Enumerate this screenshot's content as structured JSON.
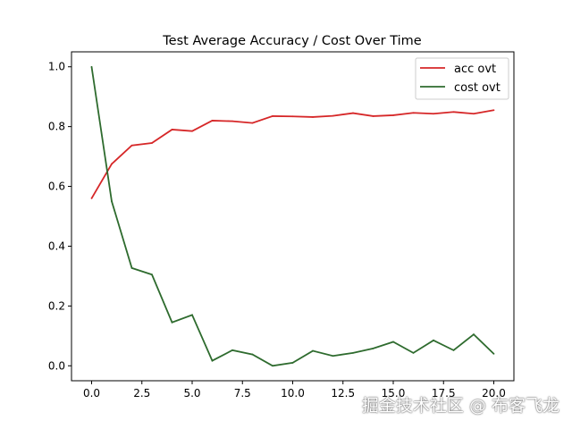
{
  "chart_data": {
    "type": "line",
    "title": "Test Average Accuracy / Cost Over Time",
    "xlabel": "",
    "ylabel": "",
    "xlim": [
      -1,
      21
    ],
    "ylim": [
      -0.05,
      1.05
    ],
    "xticks": [
      "0.0",
      "2.5",
      "5.0",
      "7.5",
      "10.0",
      "12.5",
      "15.0",
      "17.5",
      "20.0"
    ],
    "xtick_values": [
      0,
      2.5,
      5,
      7.5,
      10,
      12.5,
      15,
      17.5,
      20
    ],
    "yticks": [
      "0.0",
      "0.2",
      "0.4",
      "0.6",
      "0.8",
      "1.0"
    ],
    "ytick_values": [
      0,
      0.2,
      0.4,
      0.6,
      0.8,
      1.0
    ],
    "grid": false,
    "legend_position": "top-right",
    "x": [
      0,
      1,
      2,
      3,
      4,
      5,
      6,
      7,
      8,
      9,
      10,
      11,
      12,
      13,
      14,
      15,
      16,
      17,
      18,
      19,
      20
    ],
    "series": [
      {
        "name": "acc ovt",
        "color": "#d62728",
        "values": [
          0.56,
          0.675,
          0.737,
          0.745,
          0.79,
          0.785,
          0.82,
          0.818,
          0.812,
          0.835,
          0.834,
          0.832,
          0.836,
          0.845,
          0.835,
          0.838,
          0.846,
          0.843,
          0.849,
          0.843,
          0.855
        ]
      },
      {
        "name": "cost ovt",
        "color": "#2e6b2e",
        "values": [
          1.0,
          0.55,
          0.327,
          0.305,
          0.145,
          0.17,
          0.017,
          0.052,
          0.038,
          0.0,
          0.01,
          0.05,
          0.033,
          0.043,
          0.058,
          0.08,
          0.043,
          0.085,
          0.052,
          0.105,
          0.04
        ]
      }
    ]
  },
  "watermark": "掘金技术社区 @ 布客飞龙"
}
